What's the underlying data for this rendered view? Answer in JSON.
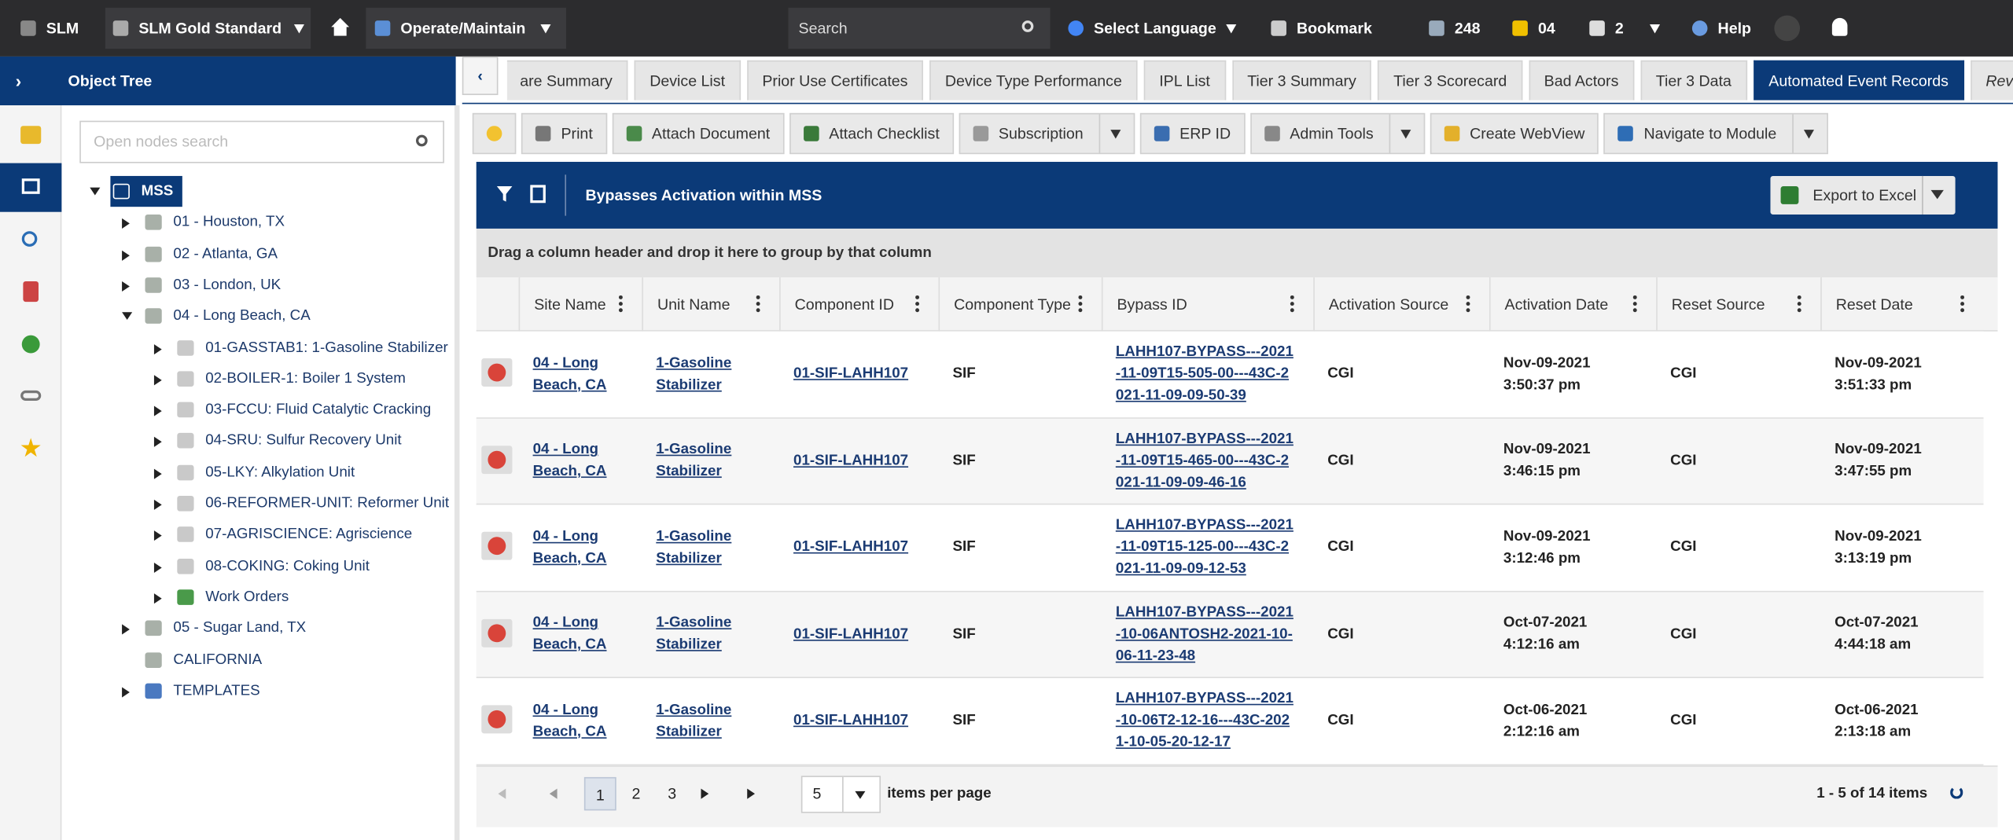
{
  "topbar": {
    "app": "SLM",
    "site": "SLM Gold Standard",
    "module": "Operate/Maintain",
    "search": "Search",
    "language": "Select Language",
    "bookmark": "Bookmark",
    "messages": "248",
    "alerts": "04",
    "docs": "2",
    "help": "Help"
  },
  "sidebar": {
    "title": "Object Tree",
    "search_placeholder": "Open nodes search"
  },
  "tree": [
    {
      "label": "MSS",
      "level": 0,
      "expanded": true,
      "icon": "cloud"
    },
    {
      "label": "01 - Houston, TX",
      "level": 1,
      "expanded": false,
      "icon": "site"
    },
    {
      "label": "02 - Atlanta, GA",
      "level": 1,
      "expanded": false,
      "icon": "site"
    },
    {
      "label": "03 - London, UK",
      "level": 1,
      "expanded": false,
      "icon": "site"
    },
    {
      "label": "04 - Long Beach, CA",
      "level": 1,
      "expanded": true,
      "icon": "site"
    },
    {
      "label": "01-GASSTAB1: 1-Gasoline Stabilizer",
      "level": 2,
      "expanded": false,
      "icon": "unit"
    },
    {
      "label": "02-BOILER-1: Boiler 1 System",
      "level": 2,
      "expanded": false,
      "icon": "unit"
    },
    {
      "label": "03-FCCU: Fluid Catalytic Cracking",
      "level": 2,
      "expanded": false,
      "icon": "unit"
    },
    {
      "label": "04-SRU: Sulfur Recovery Unit",
      "level": 2,
      "expanded": false,
      "icon": "unit"
    },
    {
      "label": "05-LKY: Alkylation Unit",
      "level": 2,
      "expanded": false,
      "icon": "unit"
    },
    {
      "label": "06-REFORMER-UNIT: Reformer Unit",
      "level": 2,
      "expanded": false,
      "icon": "unit"
    },
    {
      "label": "07-AGRISCIENCE: Agriscience",
      "level": 2,
      "expanded": false,
      "icon": "unit"
    },
    {
      "label": "08-COKING: Coking Unit",
      "level": 2,
      "expanded": false,
      "icon": "unit"
    },
    {
      "label": "Work Orders",
      "level": 2,
      "expanded": false,
      "icon": "workorder"
    },
    {
      "label": "05 - Sugar Land, TX",
      "level": 1,
      "expanded": false,
      "icon": "site"
    },
    {
      "label": "CALIFORNIA",
      "level": 1,
      "icon": "site"
    },
    {
      "label": "TEMPLATES",
      "level": 1,
      "expanded": false,
      "icon": "template"
    }
  ],
  "tabs": [
    {
      "label": "are Summary"
    },
    {
      "label": "Device List"
    },
    {
      "label": "Prior Use Certificates"
    },
    {
      "label": "Device Type Performance"
    },
    {
      "label": "IPL List"
    },
    {
      "label": "Tier 3 Summary"
    },
    {
      "label": "Tier 3 Scorecard"
    },
    {
      "label": "Bad Actors"
    },
    {
      "label": "Tier 3 Data"
    },
    {
      "label": "Automated Event Records",
      "active": true
    },
    {
      "label": "Revisions",
      "italic": true
    }
  ],
  "toolbar": [
    {
      "label": "Print"
    },
    {
      "label": "Attach Document"
    },
    {
      "label": "Attach Checklist"
    },
    {
      "label": "Subscription",
      "dropdown": true
    },
    {
      "label": "ERP ID"
    },
    {
      "label": "Admin Tools",
      "dropdown": true
    },
    {
      "label": "Create WebView"
    },
    {
      "label": "Navigate to Module",
      "dropdown": true
    }
  ],
  "grid": {
    "title": "Bypasses Activation within MSS",
    "export": "Export to Excel",
    "group_hint": "Drag a column header and drop it here to group by that column",
    "columns": [
      "Site Name",
      "Unit Name",
      "Component ID",
      "Component Type",
      "Bypass ID",
      "Activation Source",
      "Activation Date",
      "Reset Source",
      "Reset Date"
    ],
    "rows": [
      [
        "04 - Long Beach, CA",
        "1-Gasoline Stabilizer",
        "01-SIF-LAHH107",
        "SIF",
        "LAHH107-BYPASS---2021-11-09T15-505-00---43C-2021-11-09-09-50-39",
        "CGI",
        "Nov-09-2021 3:50:37 pm",
        "CGI",
        "Nov-09-2021 3:51:33 pm"
      ],
      [
        "04 - Long Beach, CA",
        "1-Gasoline Stabilizer",
        "01-SIF-LAHH107",
        "SIF",
        "LAHH107-BYPASS---2021-11-09T15-465-00---43C-2021-11-09-09-46-16",
        "CGI",
        "Nov-09-2021 3:46:15 pm",
        "CGI",
        "Nov-09-2021 3:47:55 pm"
      ],
      [
        "04 - Long Beach, CA",
        "1-Gasoline Stabilizer",
        "01-SIF-LAHH107",
        "SIF",
        "LAHH107-BYPASS---2021-11-09T15-125-00---43C-2021-11-09-09-12-53",
        "CGI",
        "Nov-09-2021 3:12:46 pm",
        "CGI",
        "Nov-09-2021 3:13:19 pm"
      ],
      [
        "04 - Long Beach, CA",
        "1-Gasoline Stabilizer",
        "01-SIF-LAHH107",
        "SIF",
        "LAHH107-BYPASS---2021-10-06ANTOSH2-2021-10-06-11-23-48",
        "CGI",
        "Oct-07-2021 4:12:16 am",
        "CGI",
        "Oct-07-2021 4:44:18 am"
      ],
      [
        "04 - Long Beach, CA",
        "1-Gasoline Stabilizer",
        "01-SIF-LAHH107",
        "SIF",
        "LAHH107-BYPASS---2021-10-06T2-12-16---43C-2021-10-05-20-12-17",
        "CGI",
        "Oct-06-2021 2:12:16 am",
        "CGI",
        "Oct-06-2021 2:13:18 am"
      ]
    ],
    "pager": {
      "pages": [
        1,
        2,
        3
      ],
      "current": 1,
      "page_size": 5,
      "items_label": "items per page",
      "summary": "1 - 5 of 14 items"
    }
  }
}
